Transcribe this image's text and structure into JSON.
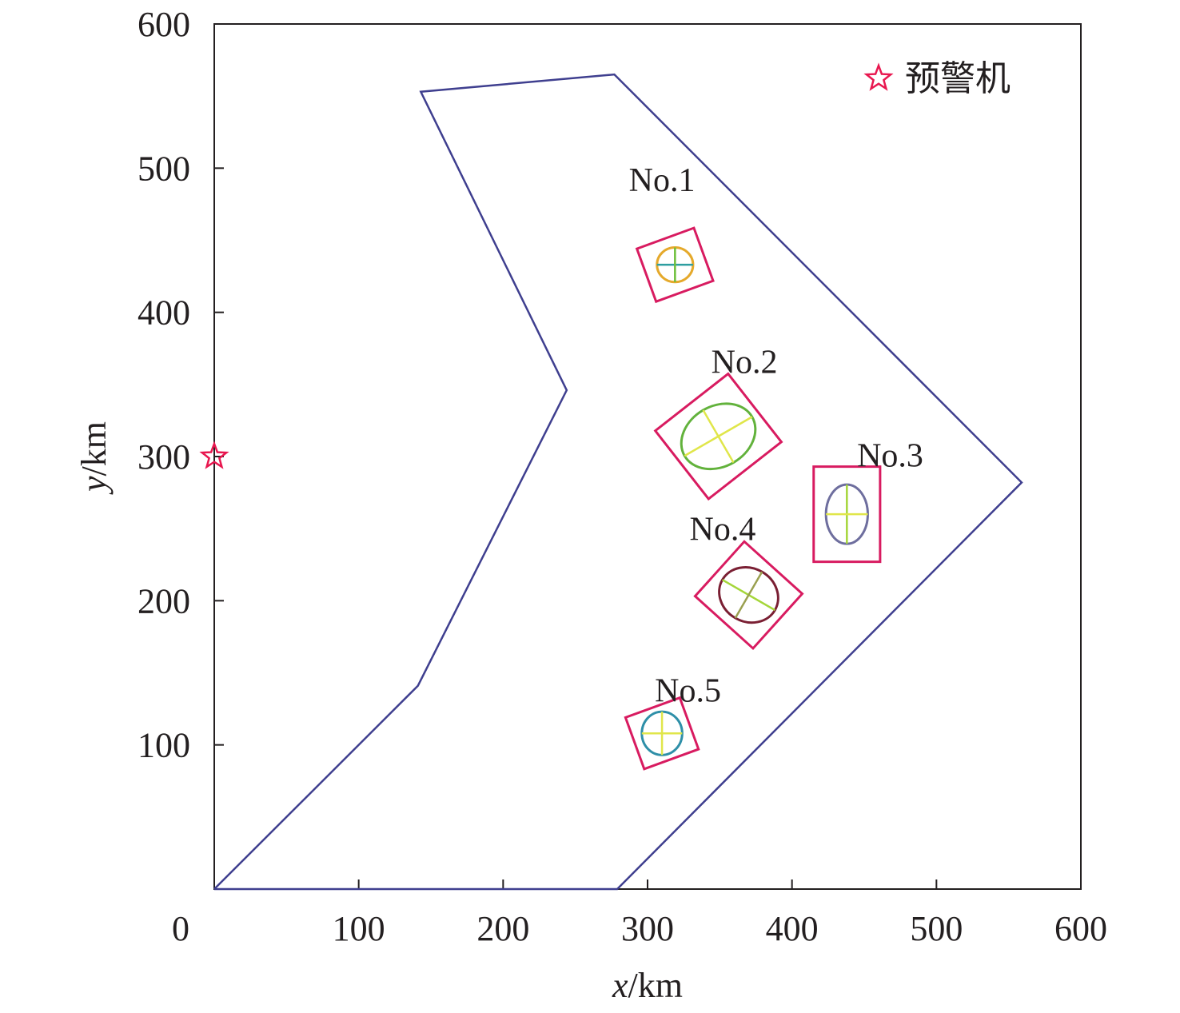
{
  "chart_data": {
    "type": "scatter",
    "xlabel": {
      "var": "x",
      "unit": "/km"
    },
    "ylabel": {
      "var": "y",
      "unit": "/km"
    },
    "xlim": [
      0,
      600
    ],
    "ylim": [
      0,
      600
    ],
    "x_ticks": [
      "0",
      "100",
      "200",
      "300",
      "400",
      "500",
      "600"
    ],
    "y_ticks": [
      "100",
      "200",
      "300",
      "400",
      "500",
      "600"
    ],
    "x_tick_values": [
      0,
      100,
      200,
      300,
      400,
      500,
      600
    ],
    "y_tick_values": [
      100,
      200,
      300,
      400,
      500,
      600
    ],
    "grid": false,
    "legend": {
      "label": "预警机",
      "marker": "star",
      "color": "#e8174f",
      "placement": "top-right"
    },
    "awacs_position": [
      0,
      300
    ],
    "region_boundary": [
      [
        0,
        0
      ],
      [
        141,
        141
      ],
      [
        244,
        346
      ],
      [
        143,
        553
      ],
      [
        277,
        565
      ],
      [
        559,
        282
      ],
      [
        279,
        0
      ],
      [
        0,
        0
      ]
    ],
    "targets": [
      {
        "label": "No.1",
        "center": [
          319,
          433
        ],
        "semi_major": 12.5,
        "semi_minor": 12.0,
        "angle_deg": 0,
        "rect_width": 42,
        "rect_height": 39,
        "rect_angle_deg": 20,
        "ellipse_color": "#e5a92b",
        "axis_colors": [
          "#2e9ea0",
          "#6cbf3a"
        ]
      },
      {
        "label": "No.2",
        "center": [
          349,
          314
        ],
        "semi_major": 27,
        "semi_minor": 21,
        "angle_deg": 30,
        "rect_width": 64,
        "rect_height": 60,
        "rect_angle_deg": 38,
        "ellipse_color": "#62b23c",
        "axis_colors": [
          "#e0e64a",
          "#e0e64a"
        ]
      },
      {
        "label": "No.3",
        "center": [
          438,
          260
        ],
        "semi_major": 20.5,
        "semi_minor": 14.5,
        "angle_deg": 90,
        "rect_width": 46,
        "rect_height": 66,
        "rect_angle_deg": 0,
        "ellipse_color": "#6e6e9e",
        "axis_colors": [
          "#a5d63a",
          "#e0e64a"
        ]
      },
      {
        "label": "No.4",
        "center": [
          370,
          204
        ],
        "semi_major": 21,
        "semi_minor": 18.5,
        "angle_deg": -30,
        "rect_width": 54,
        "rect_height": 51,
        "rect_angle_deg": -42,
        "ellipse_color": "#7a1f33",
        "axis_colors": [
          "#a5d63a",
          "#9aa050"
        ]
      },
      {
        "label": "No.5",
        "center": [
          310,
          108
        ],
        "semi_major": 15,
        "semi_minor": 14,
        "angle_deg": 90,
        "rect_width": 40,
        "rect_height": 38,
        "rect_angle_deg": 20,
        "ellipse_color": "#2e8fa8",
        "axis_colors": [
          "#e0e64a",
          "#e0e64a"
        ]
      }
    ],
    "colors": {
      "boundary": "#3f3f8f",
      "rect": "#d81b60",
      "star": "#e8174f",
      "axis": "#231f20"
    }
  }
}
